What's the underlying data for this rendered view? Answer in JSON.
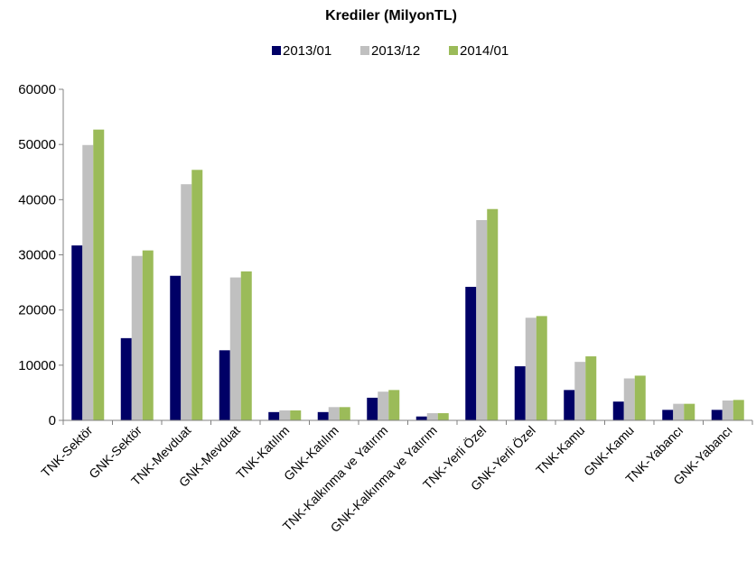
{
  "chart_data": {
    "type": "bar",
    "title": "Krediler (MilyonTL)",
    "xlabel": "",
    "ylabel": "",
    "ylim": [
      0,
      60000
    ],
    "yticks": [
      0,
      10000,
      20000,
      30000,
      40000,
      50000,
      60000
    ],
    "grid": false,
    "legend_position": "top-center",
    "categories": [
      "TNK-Sektör",
      "GNK-Sektör",
      "TNK-Mevduat",
      "GNK-Mevduat",
      "TNK-Katılım",
      "GNK-Katılım",
      "TNK-Kalkınma ve Yatırım",
      "GNK-Kalkınma ve Yatırım",
      "TNK-Yerli Özel",
      "GNK-Yerli Özel",
      "TNK-Kamu",
      "GNK-Kamu",
      "TNK-Yabancı",
      "GNK-Yabancı"
    ],
    "series": [
      {
        "name": "2013/01",
        "color": "#000066",
        "values": [
          31700,
          14900,
          26200,
          12700,
          1500,
          1500,
          4100,
          700,
          24200,
          9800,
          5500,
          3400,
          1900,
          1900
        ]
      },
      {
        "name": "2013/12",
        "color": "#c0c0c0",
        "values": [
          49900,
          29800,
          42800,
          25900,
          1800,
          2400,
          5200,
          1300,
          36300,
          18600,
          10600,
          7600,
          3000,
          3600
        ]
      },
      {
        "name": "2014/01",
        "color": "#9bbb59",
        "values": [
          52700,
          30800,
          45400,
          27000,
          1800,
          2400,
          5500,
          1300,
          38300,
          18900,
          11600,
          8100,
          3000,
          3700
        ]
      }
    ]
  }
}
